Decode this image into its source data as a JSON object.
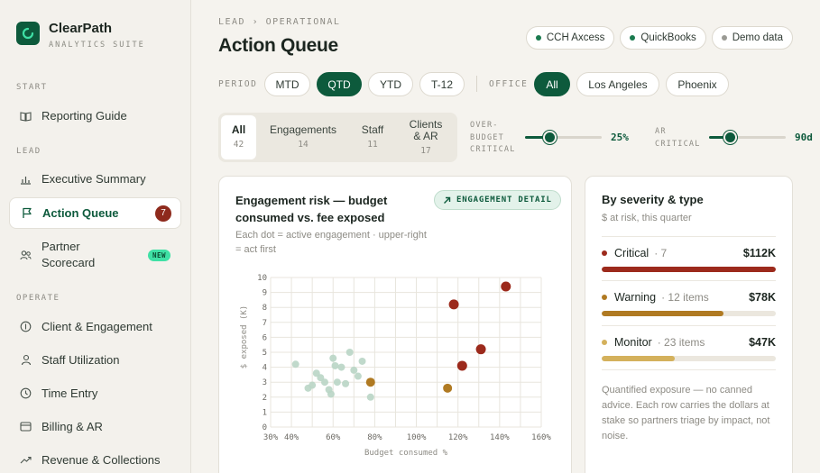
{
  "brand": {
    "name": "ClearPath",
    "subtitle": "ANALYTICS SUITE"
  },
  "sidebar": {
    "sections": [
      {
        "label": "START",
        "items": [
          {
            "label": "Reporting Guide",
            "icon": "book-icon"
          }
        ]
      },
      {
        "label": "LEAD",
        "items": [
          {
            "label": "Executive Summary",
            "icon": "bar-chart-icon"
          },
          {
            "label": "Action Queue",
            "icon": "flag-icon",
            "badge": "7",
            "active": true
          },
          {
            "label": "Partner Scorecard",
            "icon": "users-icon",
            "tag": "NEW"
          }
        ]
      },
      {
        "label": "OPERATE",
        "items": [
          {
            "label": "Client & Engagement",
            "icon": "dollar-circle-icon"
          },
          {
            "label": "Staff Utilization",
            "icon": "person-icon"
          },
          {
            "label": "Time Entry",
            "icon": "clock-icon"
          },
          {
            "label": "Billing & AR",
            "icon": "card-icon"
          },
          {
            "label": "Revenue & Collections",
            "icon": "trend-up-icon"
          }
        ]
      }
    ]
  },
  "header": {
    "breadcrumb": "LEAD › OPERATIONAL",
    "title": "Action Queue",
    "sources": [
      {
        "label": "CCH Axcess",
        "color": "#1a7a4f"
      },
      {
        "label": "QuickBooks",
        "color": "#1a7a4f"
      },
      {
        "label": "Demo data",
        "color": "#9a9a94"
      }
    ]
  },
  "filters": {
    "period_label": "PERIOD",
    "periods": [
      "MTD",
      "QTD",
      "YTD",
      "T-12"
    ],
    "period_selected": "QTD",
    "office_label": "OFFICE",
    "offices": [
      "All",
      "Los Angeles",
      "Phoenix"
    ],
    "office_selected": "All"
  },
  "tabs": [
    {
      "label": "All",
      "count": "42",
      "active": true
    },
    {
      "label": "Engagements",
      "count": "14"
    },
    {
      "label": "Staff",
      "count": "11"
    },
    {
      "label": "Clients & AR",
      "count": "17"
    }
  ],
  "sliders": [
    {
      "label": "OVER-BUDGET CRITICAL",
      "value": "25%",
      "fraction": 0.32
    },
    {
      "label": "AR CRITICAL",
      "value": "90d",
      "fraction": 0.28
    }
  ],
  "risk_card": {
    "title": "Engagement risk — budget consumed vs. fee exposed",
    "subtitle": "Each dot = active engagement · upper-right = act first",
    "detail_button": "ENGAGEMENT DETAIL"
  },
  "chart_data": {
    "type": "scatter",
    "xlabel": "Budget consumed %",
    "ylabel": "$ exposed (K)",
    "xlim": [
      30,
      160
    ],
    "ylim": [
      0,
      10
    ],
    "x_ticks": [
      "30%",
      "40%",
      "60%",
      "80%",
      "100%",
      "120%",
      "140%",
      "160%"
    ],
    "y_ticks": [
      "0",
      "1",
      "2",
      "3",
      "4",
      "5",
      "6",
      "7",
      "8",
      "9",
      "10"
    ],
    "grid": true,
    "colors": {
      "normal": "#b9d5c5",
      "warning": "#b07a22",
      "critical": "#9c2a1c"
    },
    "points": [
      {
        "x": 42,
        "y": 4.2,
        "s": "normal"
      },
      {
        "x": 48,
        "y": 2.6,
        "s": "normal"
      },
      {
        "x": 50,
        "y": 2.8,
        "s": "normal"
      },
      {
        "x": 52,
        "y": 3.6,
        "s": "normal"
      },
      {
        "x": 54,
        "y": 3.3,
        "s": "normal"
      },
      {
        "x": 56,
        "y": 3.0,
        "s": "normal"
      },
      {
        "x": 58,
        "y": 2.5,
        "s": "normal"
      },
      {
        "x": 59,
        "y": 2.2,
        "s": "normal"
      },
      {
        "x": 60,
        "y": 4.6,
        "s": "normal"
      },
      {
        "x": 61,
        "y": 4.1,
        "s": "normal"
      },
      {
        "x": 62,
        "y": 3.0,
        "s": "normal"
      },
      {
        "x": 64,
        "y": 4.0,
        "s": "normal"
      },
      {
        "x": 66,
        "y": 2.9,
        "s": "normal"
      },
      {
        "x": 68,
        "y": 5.0,
        "s": "normal"
      },
      {
        "x": 70,
        "y": 3.8,
        "s": "normal"
      },
      {
        "x": 72,
        "y": 3.4,
        "s": "normal"
      },
      {
        "x": 74,
        "y": 4.4,
        "s": "normal"
      },
      {
        "x": 78,
        "y": 2.0,
        "s": "normal"
      },
      {
        "x": 78,
        "y": 3.0,
        "s": "warning"
      },
      {
        "x": 115,
        "y": 2.6,
        "s": "warning"
      },
      {
        "x": 118,
        "y": 8.2,
        "s": "critical"
      },
      {
        "x": 122,
        "y": 4.1,
        "s": "critical"
      },
      {
        "x": 131,
        "y": 5.2,
        "s": "critical"
      },
      {
        "x": 143,
        "y": 9.4,
        "s": "critical"
      }
    ]
  },
  "severity_card": {
    "title": "By severity & type",
    "subtitle": "$ at risk, this quarter",
    "rows": [
      {
        "label": "Critical",
        "items": "· 7",
        "amount": "$112K",
        "color": "#9c2a1c",
        "fraction": 1.0
      },
      {
        "label": "Warning",
        "items": "· 12 items",
        "amount": "$78K",
        "color": "#b07a22",
        "fraction": 0.7
      },
      {
        "label": "Monitor",
        "items": "· 23 items",
        "amount": "$47K",
        "color": "#d4b15c",
        "fraction": 0.42
      }
    ],
    "note": "Quantified exposure — no canned advice. Each row carries the dollars at stake so partners triage by impact, not noise."
  }
}
